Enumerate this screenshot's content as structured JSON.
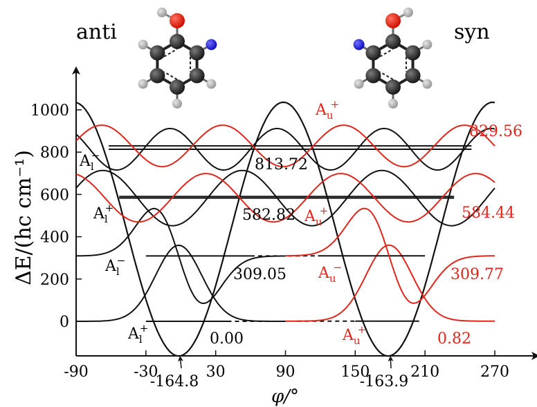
{
  "colors": {
    "black": "#111111",
    "red": "#e0251b",
    "carbon": "#2b2b2b",
    "hydrogen": "#b3b3b3",
    "oxygen": "#e81a0c",
    "nitrogen": "#2222e0"
  },
  "molecules": [
    {
      "name": "anti",
      "label": "anti"
    },
    {
      "name": "syn",
      "label": "syn"
    }
  ],
  "chart_data": {
    "type": "line",
    "xlabel": "φ/°",
    "ylabel": "ΔE/(hc cm⁻¹)",
    "xlim": [
      -90,
      270
    ],
    "ylim": [
      -150,
      1100
    ],
    "x_ticks": [
      -90,
      -30,
      30,
      90,
      150,
      210,
      270
    ],
    "y_ticks": [
      0,
      200,
      400,
      600,
      800,
      1000
    ],
    "potential_minima": [
      {
        "x": -1.8,
        "label": "-164.8"
      },
      {
        "x": 179.1,
        "label": "-163.9"
      }
    ],
    "anti_levels": [
      {
        "energy": 0.0,
        "label": "0.00",
        "symmetry": "A",
        "sub": "l",
        "sup": "+"
      },
      {
        "energy": 309.05,
        "label": "309.05",
        "symmetry": "A",
        "sub": "l",
        "sup": "−"
      },
      {
        "energy": 582.82,
        "label": "582.82",
        "symmetry": "A",
        "sub": "l",
        "sup": "+"
      },
      {
        "energy": 813.72,
        "label": "813.72",
        "symmetry": "A",
        "sub": "l",
        "sup": "−"
      }
    ],
    "syn_levels": [
      {
        "energy": 0.82,
        "label": "0.82",
        "symmetry": "A",
        "sub": "u",
        "sup": "+"
      },
      {
        "energy": 309.77,
        "label": "309.77",
        "symmetry": "A",
        "sub": "u",
        "sup": "−"
      },
      {
        "energy": 584.44,
        "label": "584.44",
        "symmetry": "A",
        "sub": "u",
        "sup": "+"
      },
      {
        "energy": 829.56,
        "label": "829.56",
        "symmetry": "A",
        "sub": "u",
        "sup": "+"
      }
    ]
  }
}
